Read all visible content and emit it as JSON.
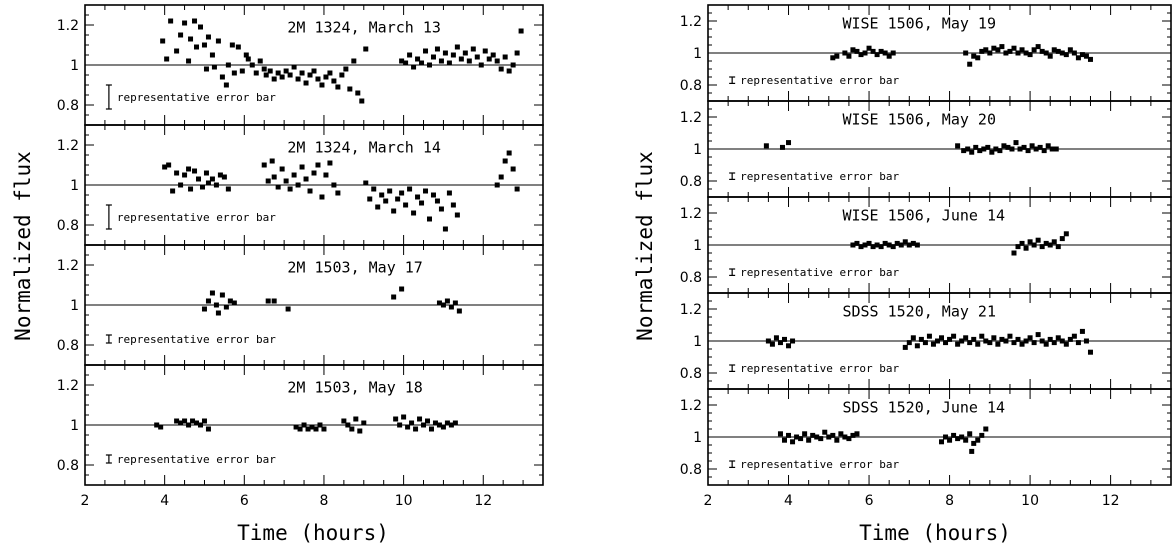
{
  "chart_data": [
    {
      "type": "scatter",
      "xlabel": "Time (hours)",
      "ylabel": "Normalized flux",
      "xlim": [
        2,
        13.5
      ],
      "xticks": [
        2,
        4,
        6,
        8,
        10,
        12
      ],
      "ylim": [
        0.7,
        1.3
      ],
      "yticks": [
        0.8,
        1,
        1.2
      ],
      "reference_line": 1,
      "error_bar_label": "representative error bar",
      "panels": [
        {
          "title": "2M 1324, March 13",
          "error_bar_half": 0.06,
          "x": [
            3.95,
            4.05,
            4.15,
            4.3,
            4.4,
            4.5,
            4.6,
            4.65,
            4.75,
            4.8,
            4.9,
            5.0,
            5.05,
            5.1,
            5.2,
            5.25,
            5.35,
            5.45,
            5.55,
            5.6,
            5.7,
            5.75,
            5.85,
            5.95,
            6.05,
            6.1,
            6.2,
            6.3,
            6.4,
            6.5,
            6.55,
            6.65,
            6.75,
            6.85,
            6.95,
            7.05,
            7.15,
            7.25,
            7.35,
            7.45,
            7.55,
            7.65,
            7.75,
            7.85,
            7.95,
            8.05,
            8.15,
            8.25,
            8.35,
            8.45,
            8.55,
            8.65,
            8.75,
            8.85,
            8.95,
            9.05,
            9.95,
            10.05,
            10.15,
            10.25,
            10.35,
            10.45,
            10.55,
            10.65,
            10.75,
            10.85,
            10.95,
            11.05,
            11.15,
            11.25,
            11.35,
            11.45,
            11.55,
            11.65,
            11.75,
            11.85,
            11.95,
            12.05,
            12.15,
            12.25,
            12.35,
            12.45,
            12.55,
            12.65,
            12.75,
            12.85,
            12.95
          ],
          "y": [
            1.12,
            1.03,
            1.22,
            1.07,
            1.15,
            1.21,
            1.02,
            1.13,
            1.22,
            1.09,
            1.19,
            1.1,
            0.98,
            1.14,
            1.05,
            0.99,
            1.12,
            0.94,
            0.9,
            1.0,
            1.1,
            0.96,
            1.09,
            0.97,
            1.05,
            1.03,
            1.0,
            0.96,
            1.02,
            0.98,
            0.95,
            0.97,
            0.93,
            0.96,
            0.94,
            0.97,
            0.95,
            0.99,
            0.93,
            0.96,
            0.91,
            0.95,
            0.97,
            0.93,
            0.9,
            0.94,
            0.96,
            0.92,
            0.89,
            0.95,
            0.98,
            0.88,
            1.02,
            0.86,
            0.82,
            1.08,
            1.02,
            1.01,
            1.05,
            0.99,
            1.03,
            1.01,
            1.07,
            1.0,
            1.04,
            1.08,
            1.02,
            1.06,
            1.01,
            1.05,
            1.09,
            1.03,
            1.06,
            1.02,
            1.08,
            1.04,
            1.0,
            1.07,
            1.03,
            1.05,
            1.02,
            0.98,
            1.04,
            0.97,
            1.0,
            1.06,
            1.17
          ]
        },
        {
          "title": "2M 1324, March 14",
          "error_bar_half": 0.06,
          "x": [
            4.0,
            4.1,
            4.2,
            4.3,
            4.4,
            4.5,
            4.6,
            4.65,
            4.75,
            4.85,
            4.95,
            5.05,
            5.1,
            5.2,
            5.3,
            5.4,
            5.5,
            5.6,
            6.5,
            6.6,
            6.7,
            6.75,
            6.85,
            6.95,
            7.05,
            7.15,
            7.25,
            7.35,
            7.45,
            7.55,
            7.65,
            7.75,
            7.85,
            7.95,
            8.05,
            8.15,
            8.25,
            8.35,
            9.05,
            9.15,
            9.25,
            9.35,
            9.45,
            9.55,
            9.65,
            9.75,
            9.85,
            9.95,
            10.05,
            10.15,
            10.25,
            10.35,
            10.45,
            10.55,
            10.65,
            10.75,
            10.85,
            10.95,
            11.05,
            11.15,
            11.25,
            11.35,
            12.35,
            12.45,
            12.55,
            12.65,
            12.75,
            12.85
          ],
          "y": [
            1.09,
            1.1,
            0.97,
            1.06,
            1.0,
            1.05,
            1.08,
            0.98,
            1.07,
            1.03,
            0.99,
            1.06,
            1.01,
            1.03,
            1.0,
            1.05,
            1.04,
            0.98,
            1.1,
            1.02,
            1.12,
            1.04,
            0.99,
            1.08,
            1.02,
            0.98,
            1.05,
            1.0,
            1.09,
            1.03,
            0.97,
            1.06,
            1.1,
            0.94,
            1.05,
            1.11,
            1.0,
            0.96,
            1.01,
            0.93,
            0.98,
            0.89,
            0.95,
            0.92,
            0.97,
            0.87,
            0.93,
            0.96,
            0.9,
            0.98,
            0.86,
            0.94,
            0.91,
            0.97,
            0.83,
            0.95,
            0.92,
            0.88,
            0.78,
            0.96,
            0.9,
            0.85,
            1.0,
            1.04,
            1.12,
            1.16,
            1.08,
            0.98
          ]
        },
        {
          "title": "2M 1503, May 17",
          "error_bar_half": 0.02,
          "x": [
            5.0,
            5.1,
            5.2,
            5.3,
            5.35,
            5.45,
            5.55,
            5.65,
            5.75,
            6.6,
            6.75,
            7.1,
            9.75,
            9.95,
            10.9,
            11.0,
            11.1,
            11.2,
            11.3,
            11.4
          ],
          "y": [
            0.98,
            1.02,
            1.06,
            1.0,
            0.96,
            1.05,
            0.99,
            1.02,
            1.01,
            1.02,
            1.02,
            0.98,
            1.04,
            1.08,
            1.01,
            1.0,
            1.02,
            0.99,
            1.01,
            0.97
          ],
          "x_pairs_note": ""
        },
        {
          "title": "2M 1503, May 18",
          "error_bar_half": 0.02,
          "x": [
            3.8,
            3.9,
            4.3,
            4.4,
            4.5,
            4.6,
            4.7,
            4.8,
            4.9,
            5.0,
            5.1,
            7.3,
            7.4,
            7.5,
            7.6,
            7.7,
            7.8,
            7.9,
            8.0,
            8.5,
            8.6,
            8.7,
            8.8,
            8.9,
            9.0,
            9.8,
            9.9,
            10.0,
            10.1,
            10.2,
            10.3,
            10.4,
            10.5,
            10.6,
            10.7,
            10.8,
            10.9,
            11.0,
            11.1,
            11.2,
            11.3
          ],
          "y": [
            1.0,
            0.99,
            1.02,
            1.01,
            1.02,
            1.0,
            1.02,
            1.01,
            1.0,
            1.02,
            0.98,
            0.99,
            0.98,
            1.0,
            0.98,
            0.99,
            0.98,
            1.0,
            0.98,
            1.02,
            1.0,
            0.98,
            1.03,
            0.97,
            1.01,
            1.03,
            1.0,
            1.04,
            0.99,
            1.01,
            0.98,
            1.03,
            1.0,
            1.02,
            0.98,
            1.01,
            1.0,
            0.99,
            1.01,
            1.0,
            1.01
          ]
        }
      ]
    },
    {
      "type": "scatter",
      "xlabel": "Time (hours)",
      "ylabel": "Normalized flux",
      "xlim": [
        2,
        13.5
      ],
      "xticks": [
        2,
        4,
        6,
        8,
        10,
        12
      ],
      "ylim": [
        0.7,
        1.3
      ],
      "yticks": [
        0.8,
        1,
        1.2
      ],
      "reference_line": 1,
      "error_bar_label": "representative error bar",
      "panels": [
        {
          "title": "WISE 1506, May 19",
          "error_bar_half": 0.02,
          "x": [
            5.1,
            5.2,
            5.4,
            5.5,
            5.6,
            5.7,
            5.8,
            5.9,
            6.0,
            6.1,
            6.2,
            6.3,
            6.4,
            6.5,
            6.6,
            8.4,
            8.5,
            8.6,
            8.7,
            8.8,
            8.9,
            9.0,
            9.1,
            9.2,
            9.3,
            9.4,
            9.5,
            9.6,
            9.7,
            9.8,
            9.9,
            10.0,
            10.1,
            10.2,
            10.3,
            10.4,
            10.5,
            10.6,
            10.7,
            10.8,
            10.9,
            11.0,
            11.1,
            11.2,
            11.3,
            11.4,
            11.5
          ],
          "y": [
            0.97,
            0.98,
            1.0,
            0.98,
            1.02,
            1.01,
            0.99,
            1.0,
            1.03,
            1.01,
            0.99,
            1.01,
            1.0,
            0.98,
            1.0,
            1.0,
            0.93,
            0.98,
            0.97,
            1.01,
            1.02,
            1.0,
            1.03,
            1.02,
            1.04,
            1.0,
            1.01,
            1.03,
            1.0,
            1.02,
            1.0,
            0.99,
            1.02,
            1.04,
            1.01,
            1.0,
            0.98,
            1.02,
            1.01,
            1.0,
            0.99,
            1.02,
            1.0,
            0.97,
            0.99,
            0.98,
            0.96
          ]
        },
        {
          "title": "WISE 1506, May 20",
          "error_bar_half": 0.02,
          "x": [
            3.45,
            3.85,
            4.0,
            8.2,
            8.35,
            8.45,
            8.55,
            8.65,
            8.75,
            8.85,
            8.95,
            9.05,
            9.15,
            9.25,
            9.35,
            9.45,
            9.55,
            9.65,
            9.75,
            9.85,
            9.95,
            10.05,
            10.15,
            10.25,
            10.35,
            10.45,
            10.55,
            10.65
          ],
          "y": [
            1.02,
            1.01,
            1.04,
            1.02,
            0.99,
            1.0,
            0.98,
            1.01,
            0.99,
            1.0,
            1.01,
            0.98,
            1.0,
            0.99,
            1.02,
            1.01,
            1.0,
            1.04,
            1.0,
            1.01,
            0.99,
            1.02,
            1.0,
            1.01,
            0.99,
            1.02,
            1.0,
            1.0
          ]
        },
        {
          "title": "WISE 1506, June 14",
          "error_bar_half": 0.02,
          "x": [
            5.6,
            5.7,
            5.8,
            5.9,
            6.0,
            6.1,
            6.2,
            6.3,
            6.4,
            6.5,
            6.6,
            6.7,
            6.8,
            6.9,
            7.0,
            7.1,
            7.2,
            9.6,
            9.7,
            9.8,
            9.9,
            10.0,
            10.1,
            10.2,
            10.3,
            10.4,
            10.5,
            10.6,
            10.7,
            10.8,
            10.9
          ],
          "y": [
            1.0,
            1.01,
            0.99,
            1.0,
            1.01,
            0.99,
            1.0,
            0.99,
            1.01,
            1.0,
            0.99,
            1.01,
            1.0,
            1.02,
            1.0,
            1.01,
            1.0,
            0.95,
            0.99,
            1.01,
            0.98,
            1.02,
            1.0,
            1.03,
            0.99,
            1.01,
            1.0,
            1.02,
            0.99,
            1.04,
            1.07
          ]
        },
        {
          "title": "SDSS 1520, May 21",
          "error_bar_half": 0.02,
          "x": [
            3.5,
            3.6,
            3.7,
            3.8,
            3.9,
            4.0,
            4.1,
            6.9,
            7.0,
            7.1,
            7.2,
            7.3,
            7.4,
            7.5,
            7.6,
            7.7,
            7.8,
            7.9,
            8.0,
            8.1,
            8.2,
            8.3,
            8.4,
            8.5,
            8.6,
            8.7,
            8.8,
            8.9,
            9.0,
            9.1,
            9.2,
            9.3,
            9.4,
            9.5,
            9.6,
            9.7,
            9.8,
            9.9,
            10.0,
            10.1,
            10.2,
            10.3,
            10.4,
            10.5,
            10.6,
            10.7,
            10.8,
            10.9,
            11.0,
            11.1,
            11.2,
            11.3,
            11.4,
            11.5
          ],
          "y": [
            1.0,
            0.98,
            1.02,
            0.99,
            1.01,
            0.97,
            1.0,
            0.96,
            0.99,
            1.02,
            0.97,
            1.01,
            0.99,
            1.03,
            0.98,
            1.0,
            1.02,
            0.99,
            1.01,
            1.03,
            0.98,
            1.0,
            1.02,
            0.99,
            1.01,
            0.98,
            1.03,
            1.0,
            0.99,
            1.02,
            0.98,
            1.01,
            1.0,
            1.03,
            0.99,
            1.01,
            0.98,
            1.0,
            1.02,
            0.99,
            1.04,
            1.0,
            0.98,
            1.01,
            0.99,
            1.02,
            1.0,
            0.98,
            1.01,
            1.03,
            0.99,
            1.06,
            1.0,
            0.93
          ]
        },
        {
          "title": "SDSS 1520, June 14",
          "error_bar_half": 0.02,
          "x": [
            3.8,
            3.9,
            4.0,
            4.1,
            4.2,
            4.3,
            4.4,
            4.5,
            4.6,
            4.7,
            4.8,
            4.9,
            5.0,
            5.1,
            5.2,
            5.3,
            5.4,
            5.5,
            5.6,
            5.7,
            7.8,
            7.9,
            8.0,
            8.1,
            8.2,
            8.3,
            8.4,
            8.5,
            8.55,
            8.6,
            8.7,
            8.8,
            8.9
          ],
          "y": [
            1.02,
            0.98,
            1.01,
            0.97,
            1.0,
            0.99,
            1.02,
            0.98,
            1.01,
            1.0,
            0.99,
            1.03,
            1.0,
            1.01,
            0.98,
            1.02,
            1.0,
            0.99,
            1.01,
            1.02,
            0.97,
            1.0,
            0.98,
            1.01,
            0.99,
            1.0,
            0.98,
            1.02,
            0.91,
            0.96,
            0.98,
            1.01,
            1.05
          ]
        }
      ]
    }
  ]
}
